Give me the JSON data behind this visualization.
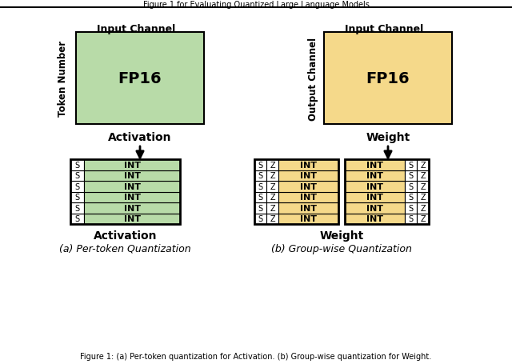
{
  "fig_width": 6.4,
  "fig_height": 4.56,
  "dpi": 100,
  "bg_color": "#ffffff",
  "green_light": "#b8dba8",
  "yellow_light": "#f5d98a",
  "caption_left": "(a) Per-token Quantization",
  "caption_right": "(b) Group-wise Quantization",
  "title": "Figure 1 for Evaluating Quantized Large Language Models",
  "title_bottom": "Figure 1: (a) Per-token quantization for Activation. (b) Group-wise quantization for Weight."
}
